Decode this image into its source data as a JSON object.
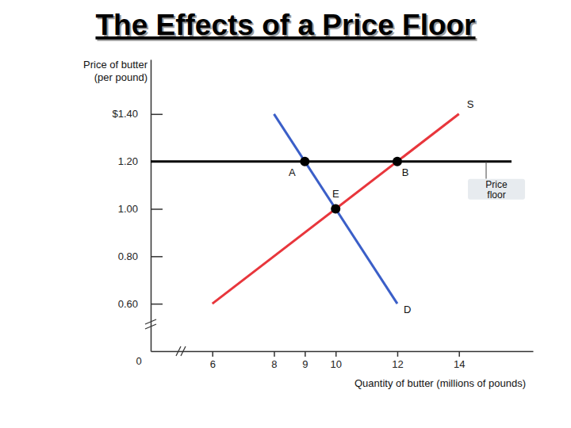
{
  "chart_data": {
    "type": "line",
    "title": "The Effects of a Price Floor",
    "ylabel": [
      "Price of butter",
      "(per pound)"
    ],
    "xlabel": "Quantity of butter (millions of pounds)",
    "origin_label": "0",
    "xlim": [
      4,
      16.4
    ],
    "ylim": [
      0.4,
      1.63
    ],
    "xticks": [
      6,
      8,
      9,
      10,
      12,
      14
    ],
    "yticks": [
      {
        "value": 0.6,
        "label": "0.60"
      },
      {
        "value": 0.8,
        "label": "0.80"
      },
      {
        "value": 1.0,
        "label": "1.00"
      },
      {
        "value": 1.2,
        "label": "1.20"
      },
      {
        "value": 1.4,
        "label": "$1.40"
      }
    ],
    "series": [
      {
        "name": "S",
        "color": "#e8363c",
        "x": [
          6,
          14
        ],
        "values": [
          0.6,
          1.4
        ]
      },
      {
        "name": "D",
        "color": "#3b5fc8",
        "x": [
          8,
          12
        ],
        "values": [
          1.4,
          0.6
        ]
      }
    ],
    "price_floor": {
      "value": 1.2,
      "label_lines": [
        "Price",
        "floor"
      ],
      "color": "#000000"
    },
    "points": [
      {
        "label": "A",
        "x": 9,
        "y": 1.2
      },
      {
        "label": "B",
        "x": 12,
        "y": 1.2
      },
      {
        "label": "E",
        "x": 10,
        "y": 1.0
      }
    ],
    "grid": false
  }
}
